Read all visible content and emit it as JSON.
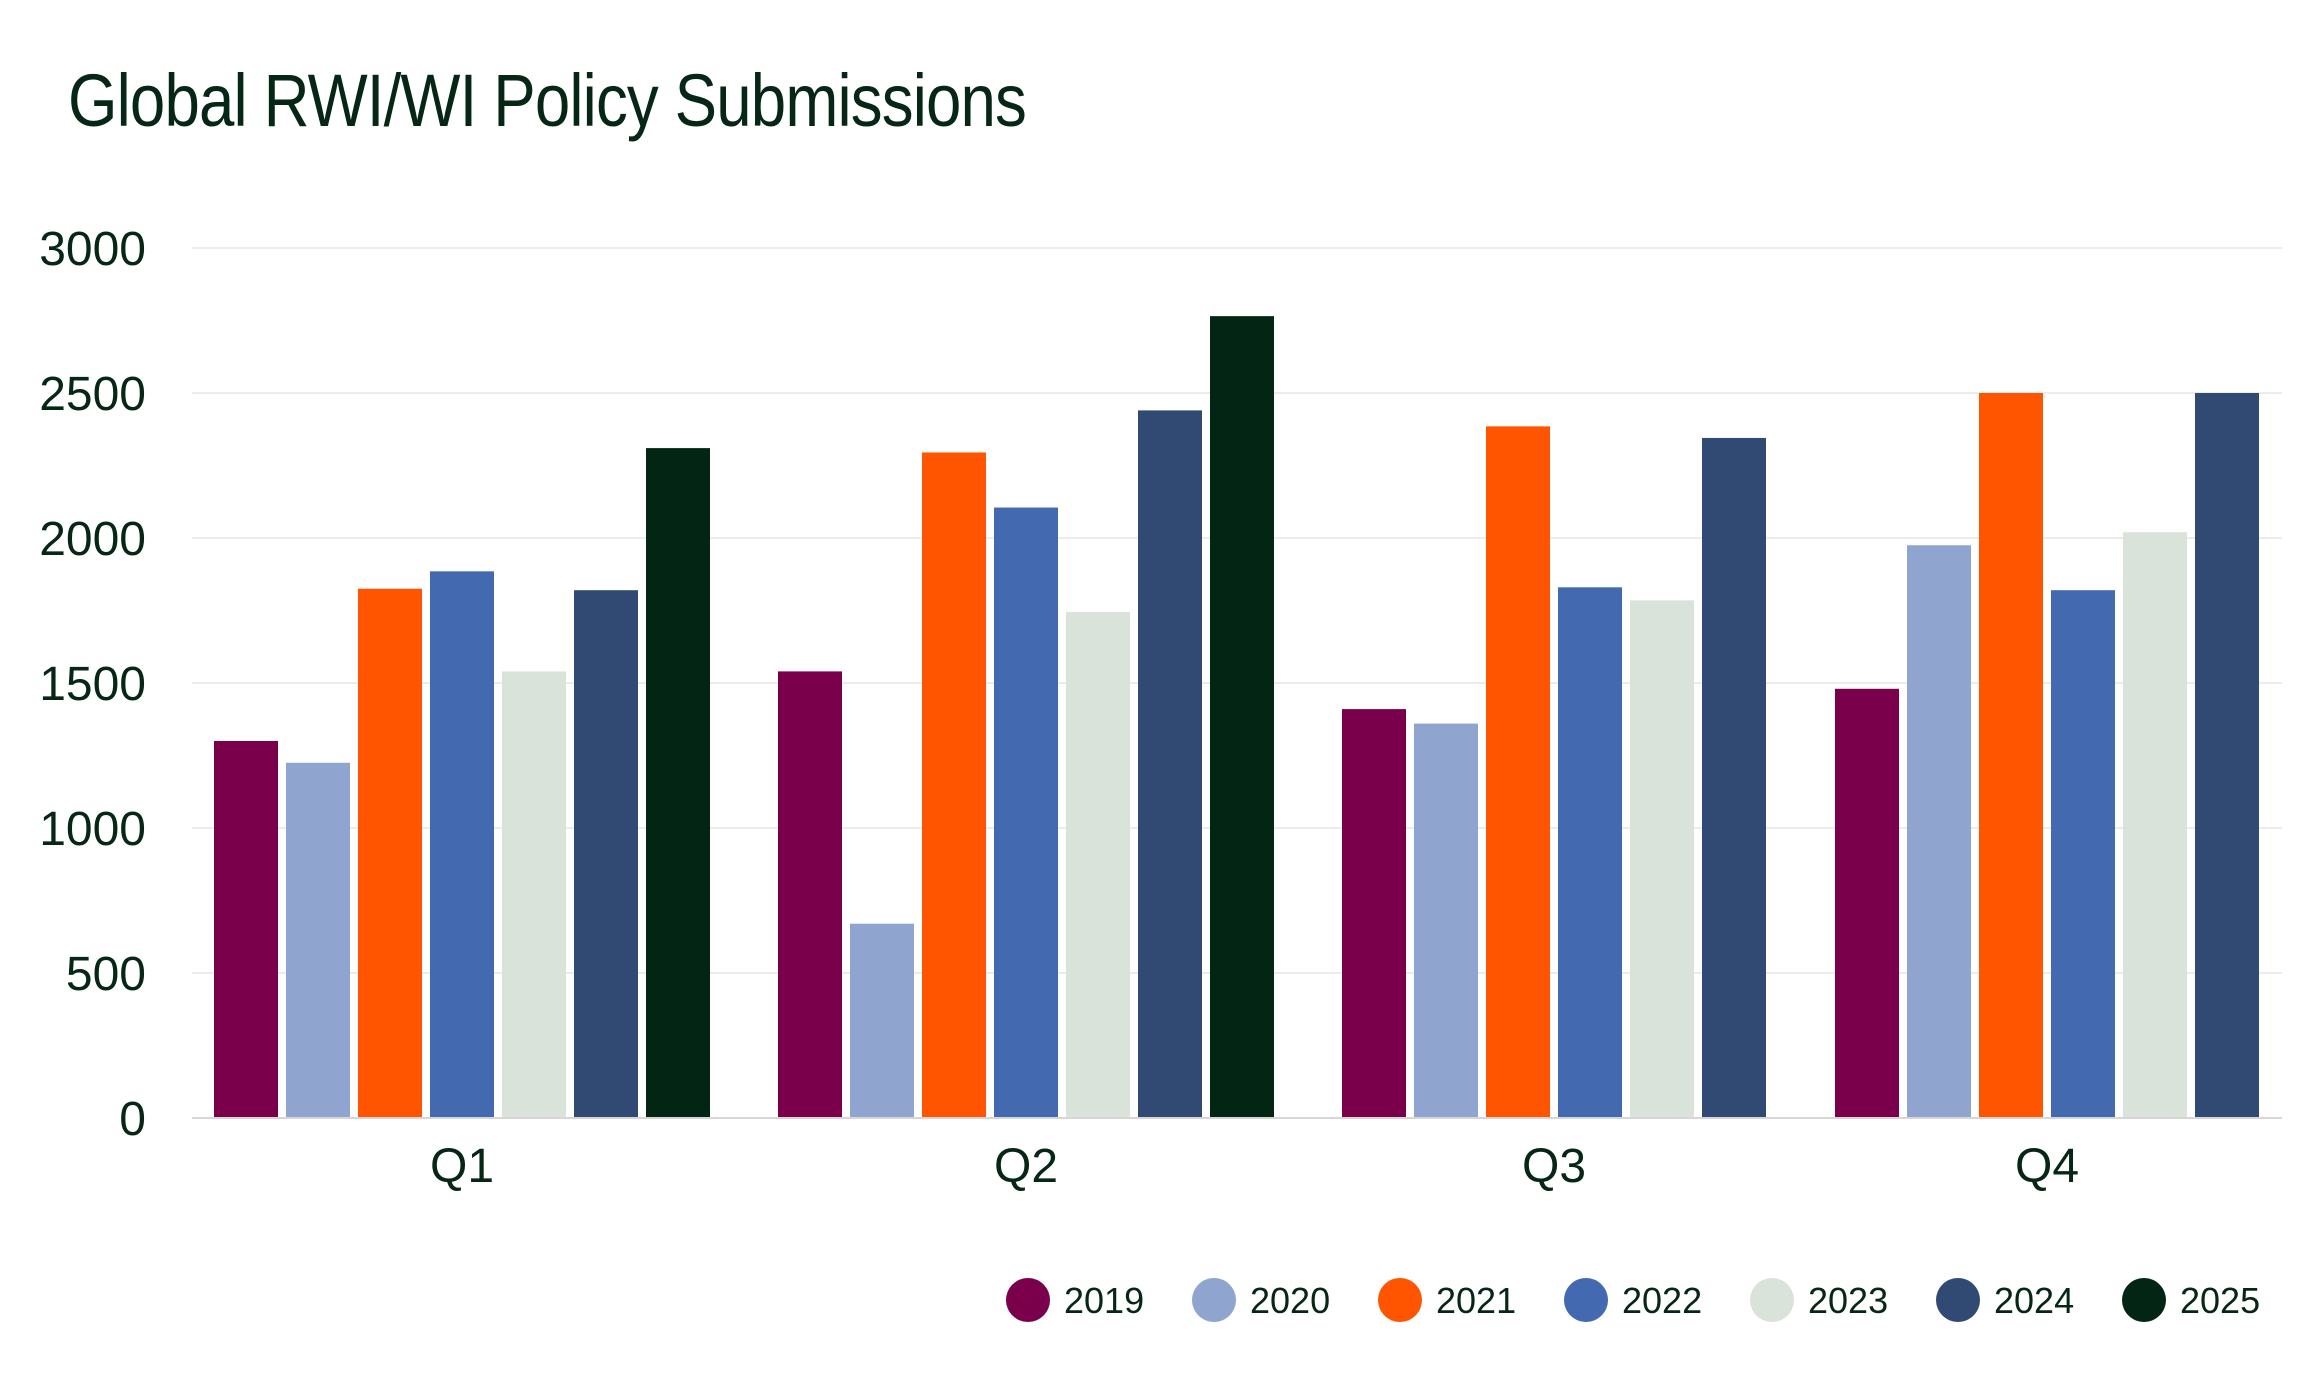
{
  "chart_data": {
    "type": "bar",
    "title": "Global RWI/WI Policy Submissions",
    "xlabel": "",
    "ylabel": "",
    "categories": [
      "Q1",
      "Q2",
      "Q3",
      "Q4"
    ],
    "ylim": [
      0,
      3000
    ],
    "yticks": [
      0,
      500,
      1000,
      1500,
      2000,
      2500,
      3000
    ],
    "grid": true,
    "legend_position": "bottom-right",
    "series": [
      {
        "name": "2019",
        "color": "#7a004b",
        "values": [
          1300,
          1540,
          1410,
          1480
        ]
      },
      {
        "name": "2020",
        "color": "#8fa5cf",
        "values": [
          1225,
          670,
          1360,
          1975
        ]
      },
      {
        "name": "2021",
        "color": "#ff5500",
        "values": [
          1825,
          2295,
          2385,
          2500
        ]
      },
      {
        "name": "2022",
        "color": "#4369b0",
        "values": [
          1885,
          2105,
          1830,
          1820
        ]
      },
      {
        "name": "2023",
        "color": "#d9e3d9",
        "values": [
          1540,
          1745,
          1785,
          2020
        ]
      },
      {
        "name": "2024",
        "color": "#304a73",
        "values": [
          1820,
          2440,
          2345,
          2500
        ]
      },
      {
        "name": "2025",
        "color": "#032614",
        "values": [
          2310,
          2765,
          null,
          null
        ]
      }
    ]
  }
}
